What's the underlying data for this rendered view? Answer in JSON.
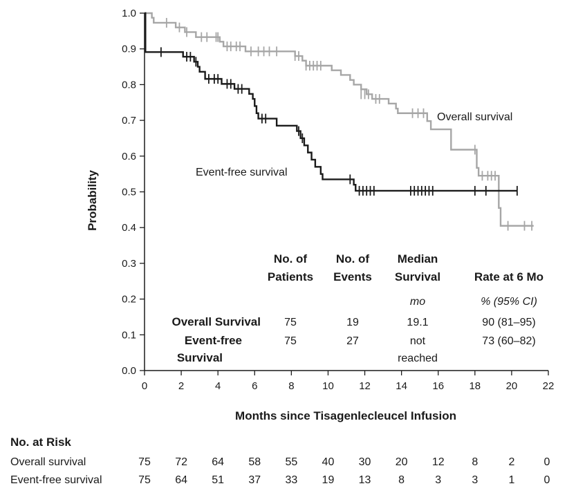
{
  "chart_data": {
    "type": "line",
    "xlabel": "Months since Tisagenlecleucel Infusion",
    "ylabel": "Probability",
    "xlim": [
      0,
      22
    ],
    "ylim": [
      0,
      1
    ],
    "x_ticks": [
      0,
      2,
      4,
      6,
      8,
      10,
      12,
      14,
      16,
      18,
      20,
      22
    ],
    "y_ticks": [
      "0.0",
      "0.1",
      "0.2",
      "0.3",
      "0.4",
      "0.5",
      "0.6",
      "0.7",
      "0.8",
      "0.9",
      "1.0"
    ],
    "grid": false,
    "series": [
      {
        "name": "Overall survival",
        "color": "#a6a6a6",
        "steps": [
          [
            0,
            1.0
          ],
          [
            0.4,
            0.987
          ],
          [
            0.5,
            0.973
          ],
          [
            1.7,
            0.96
          ],
          [
            2.2,
            0.947
          ],
          [
            2.8,
            0.933
          ],
          [
            4.1,
            0.92
          ],
          [
            4.3,
            0.907
          ],
          [
            5.5,
            0.893
          ],
          [
            8.2,
            0.88
          ],
          [
            8.6,
            0.867
          ],
          [
            8.8,
            0.853
          ],
          [
            10.2,
            0.84
          ],
          [
            10.7,
            0.827
          ],
          [
            11.2,
            0.813
          ],
          [
            11.4,
            0.8
          ],
          [
            11.8,
            0.787
          ],
          [
            12.1,
            0.773
          ],
          [
            12.4,
            0.76
          ],
          [
            13.3,
            0.747
          ],
          [
            13.7,
            0.733
          ],
          [
            13.8,
            0.72
          ],
          [
            15.3,
            0.72
          ],
          [
            15.4,
            0.698
          ],
          [
            15.6,
            0.675
          ],
          [
            16.7,
            0.618
          ],
          [
            18.1,
            0.567
          ],
          [
            18.2,
            0.545
          ],
          [
            19.3,
            0.455
          ],
          [
            19.4,
            0.405
          ],
          [
            21.2,
            0.405
          ]
        ],
        "censor": [
          [
            1.2,
            0.973
          ],
          [
            1.9,
            0.96
          ],
          [
            2.3,
            0.947
          ],
          [
            3.1,
            0.933
          ],
          [
            3.4,
            0.933
          ],
          [
            3.9,
            0.933
          ],
          [
            4.0,
            0.933
          ],
          [
            4.5,
            0.907
          ],
          [
            4.7,
            0.907
          ],
          [
            5.0,
            0.907
          ],
          [
            5.2,
            0.907
          ],
          [
            5.8,
            0.893
          ],
          [
            6.2,
            0.893
          ],
          [
            6.5,
            0.893
          ],
          [
            6.8,
            0.893
          ],
          [
            7.2,
            0.893
          ],
          [
            8.2,
            0.88
          ],
          [
            8.4,
            0.88
          ],
          [
            8.8,
            0.853
          ],
          [
            9.0,
            0.853
          ],
          [
            9.2,
            0.853
          ],
          [
            9.4,
            0.853
          ],
          [
            9.6,
            0.853
          ],
          [
            11.8,
            0.773
          ],
          [
            12.0,
            0.773
          ],
          [
            12.2,
            0.773
          ],
          [
            12.6,
            0.76
          ],
          [
            12.8,
            0.76
          ],
          [
            14.6,
            0.72
          ],
          [
            14.9,
            0.72
          ],
          [
            15.2,
            0.72
          ],
          [
            18.0,
            0.618
          ],
          [
            18.4,
            0.545
          ],
          [
            18.7,
            0.545
          ],
          [
            18.9,
            0.545
          ],
          [
            19.1,
            0.545
          ],
          [
            19.8,
            0.405
          ],
          [
            20.7,
            0.405
          ],
          [
            21.1,
            0.405
          ]
        ]
      },
      {
        "name": "Event-free survival",
        "color": "#1a1a1a",
        "steps": [
          [
            0,
            1.0
          ],
          [
            0.05,
            0.891
          ],
          [
            2.1,
            0.878
          ],
          [
            2.7,
            0.864
          ],
          [
            2.9,
            0.85
          ],
          [
            3.0,
            0.836
          ],
          [
            3.3,
            0.816
          ],
          [
            4.2,
            0.802
          ],
          [
            4.9,
            0.788
          ],
          [
            5.7,
            0.774
          ],
          [
            5.9,
            0.76
          ],
          [
            6.0,
            0.74
          ],
          [
            6.1,
            0.72
          ],
          [
            6.2,
            0.705
          ],
          [
            7.2,
            0.685
          ],
          [
            8.3,
            0.67
          ],
          [
            8.5,
            0.65
          ],
          [
            8.7,
            0.63
          ],
          [
            8.9,
            0.61
          ],
          [
            9.1,
            0.59
          ],
          [
            9.3,
            0.57
          ],
          [
            9.6,
            0.55
          ],
          [
            9.7,
            0.535
          ],
          [
            11.4,
            0.52
          ],
          [
            11.5,
            0.503
          ],
          [
            20.3,
            0.503
          ]
        ],
        "censor": [
          [
            0.9,
            0.891
          ],
          [
            2.3,
            0.878
          ],
          [
            2.5,
            0.878
          ],
          [
            2.8,
            0.864
          ],
          [
            3.5,
            0.816
          ],
          [
            3.8,
            0.816
          ],
          [
            4.0,
            0.816
          ],
          [
            4.5,
            0.802
          ],
          [
            4.7,
            0.802
          ],
          [
            5.1,
            0.788
          ],
          [
            5.3,
            0.788
          ],
          [
            6.4,
            0.705
          ],
          [
            6.6,
            0.705
          ],
          [
            8.4,
            0.67
          ],
          [
            8.6,
            0.65
          ],
          [
            11.2,
            0.535
          ],
          [
            11.7,
            0.503
          ],
          [
            11.9,
            0.503
          ],
          [
            12.1,
            0.503
          ],
          [
            12.3,
            0.503
          ],
          [
            12.5,
            0.503
          ],
          [
            14.5,
            0.503
          ],
          [
            14.7,
            0.503
          ],
          [
            14.9,
            0.503
          ],
          [
            15.1,
            0.503
          ],
          [
            15.3,
            0.503
          ],
          [
            15.5,
            0.503
          ],
          [
            15.7,
            0.503
          ],
          [
            18.0,
            0.503
          ],
          [
            18.6,
            0.503
          ]
        ]
      }
    ],
    "curve_labels": [
      "Overall survival",
      "Event-free survival"
    ],
    "summary_table": {
      "headers": [
        [
          "No. of",
          "Patients"
        ],
        [
          "No. of",
          "Events"
        ],
        [
          "Median",
          "Survival"
        ],
        [
          "Rate at 6 Mo"
        ]
      ],
      "units": [
        "",
        "",
        "mo",
        "% (95% CI)"
      ],
      "rows": [
        {
          "label": [
            "Overall Survival"
          ],
          "patients": "75",
          "events": "19",
          "median": [
            "19.1"
          ],
          "rate": "90 (81–95)"
        },
        {
          "label": [
            "Event-free",
            "Survival"
          ],
          "patients": "75",
          "events": "27",
          "median": [
            "not",
            "reached"
          ],
          "rate": "73 (60–82)"
        }
      ]
    },
    "number_at_risk": {
      "title": "No. at Risk",
      "rows": [
        {
          "label": "Overall survival",
          "values": [
            "75",
            "72",
            "64",
            "58",
            "55",
            "40",
            "30",
            "20",
            "12",
            "8",
            "2",
            "0"
          ]
        },
        {
          "label": "Event-free survival",
          "values": [
            "75",
            "64",
            "51",
            "37",
            "33",
            "19",
            "13",
            "8",
            "3",
            "3",
            "1",
            "0"
          ]
        }
      ]
    }
  }
}
